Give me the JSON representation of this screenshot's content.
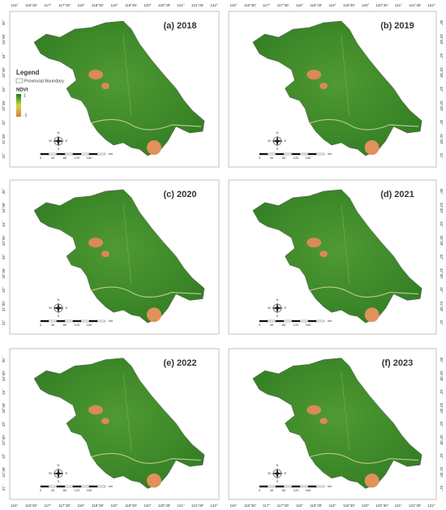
{
  "panels": [
    {
      "title": "(a) 2018"
    },
    {
      "title": "(b) 2019"
    },
    {
      "title": "(c) 2020"
    },
    {
      "title": "(d) 2021"
    },
    {
      "title": "(e) 2022"
    },
    {
      "title": "(f) 2023"
    }
  ],
  "longitude_labels": [
    "116°",
    "116°30'",
    "117°",
    "117°30'",
    "118°",
    "118°30'",
    "119°",
    "119°30'",
    "120°",
    "120°30'",
    "121°",
    "121°30'",
    "122°"
  ],
  "latitude_labels": [
    "35°",
    "34°30'",
    "34°",
    "33°30'",
    "33°",
    "32°30'",
    "32°",
    "31°30'",
    "31°"
  ],
  "legend": {
    "title": "Legend",
    "boundary": "Provincial Boundary",
    "ndvi_title": "NDVI",
    "max": "1",
    "min": "-1"
  },
  "scale_bar": {
    "labels": [
      "0",
      "40",
      "80",
      "120",
      "160"
    ],
    "unit": "km"
  },
  "compass": {
    "north": "N",
    "south": "S",
    "east": "E",
    "west": "W"
  }
}
